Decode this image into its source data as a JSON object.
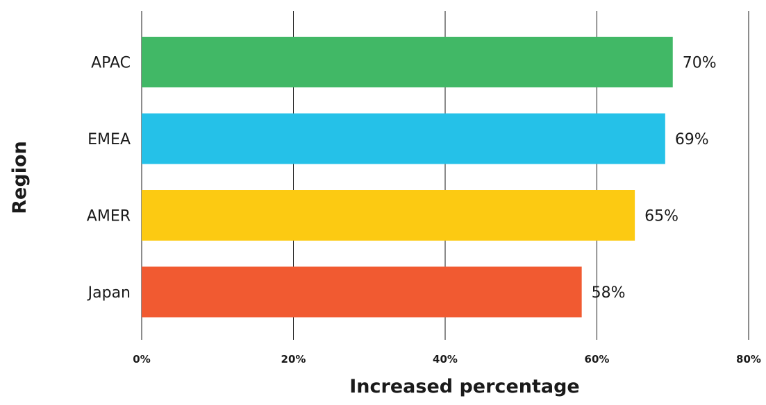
{
  "chart_data": {
    "type": "bar",
    "orientation": "horizontal",
    "categories": [
      "APAC",
      "EMEA",
      "AMER",
      "Japan"
    ],
    "values": [
      70,
      69,
      65,
      58
    ],
    "value_labels": [
      "70%",
      "69%",
      "65%",
      "58%"
    ],
    "colors": [
      "#41b866",
      "#25c1e8",
      "#fcca12",
      "#f15a31"
    ],
    "title": "",
    "xlabel": "Increased percentage",
    "ylabel": "Region",
    "xlim": [
      0,
      80
    ],
    "xticks": [
      0,
      20,
      40,
      60,
      80
    ],
    "xtick_labels": [
      "0%",
      "20%",
      "40%",
      "60%",
      "80%"
    ],
    "grid": "vertical"
  }
}
